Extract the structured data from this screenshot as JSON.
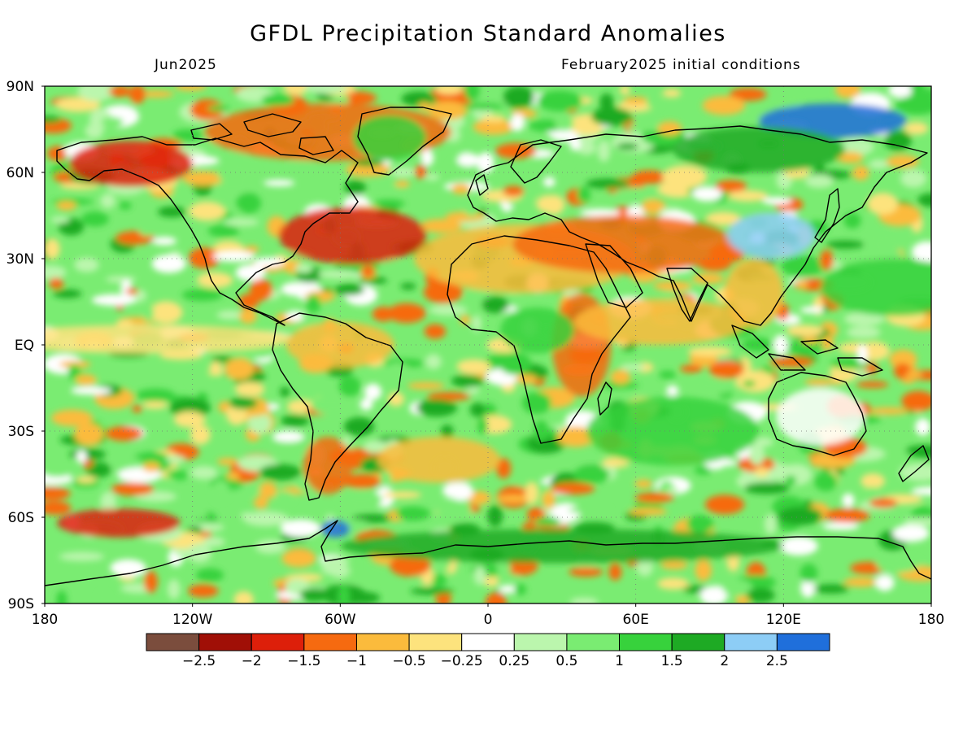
{
  "header": {
    "title": "GFDL Precipitation Standard Anomalies",
    "valid_month": "Jun2025",
    "initial_conditions": "February2025 initial conditions"
  },
  "map": {
    "projection": "equirectangular",
    "lon_range": [
      -180,
      180
    ],
    "lat_range": [
      -90,
      90
    ],
    "lat_ticks": [
      {
        "value": 90,
        "label": "90N"
      },
      {
        "value": 60,
        "label": "60N"
      },
      {
        "value": 30,
        "label": "30N"
      },
      {
        "value": 0,
        "label": "EQ"
      },
      {
        "value": -30,
        "label": "30S"
      },
      {
        "value": -60,
        "label": "60S"
      },
      {
        "value": -90,
        "label": "90S"
      }
    ],
    "lon_ticks": [
      {
        "value": -180,
        "label": "180"
      },
      {
        "value": -120,
        "label": "120W"
      },
      {
        "value": -60,
        "label": "60W"
      },
      {
        "value": 0,
        "label": "0"
      },
      {
        "value": 60,
        "label": "60E"
      },
      {
        "value": 120,
        "label": "120E"
      },
      {
        "value": 180,
        "label": "180"
      }
    ],
    "grid": "dotted at 30° intervals"
  },
  "colorbar": {
    "colors": [
      "#7b4d3d",
      "#a00f06",
      "#dd1f0a",
      "#f66a10",
      "#fbbb3c",
      "#fde37d",
      "#ffffff",
      "#bbf6ad",
      "#7aec72",
      "#37d23c",
      "#1eaa24",
      "#8dcdf6",
      "#1f6fdb"
    ],
    "labels": [
      "−2.5",
      "−2",
      "−1.5",
      "−1",
      "−0.5",
      "−0.25",
      "0.25",
      "0.5",
      "1",
      "1.5",
      "2",
      "2.5"
    ]
  },
  "chart_data": {
    "type": "heatmap",
    "title": "GFDL Precipitation Standard Anomalies",
    "subtitle_left": "Jun2025",
    "subtitle_right": "February2025 initial conditions",
    "xlim": [
      -180,
      180
    ],
    "ylim": [
      -90,
      90
    ],
    "contour_levels": [
      -2.5,
      -2,
      -1.5,
      -1,
      -0.5,
      -0.25,
      0.25,
      0.5,
      1,
      1.5,
      2,
      2.5
    ],
    "anomaly_regions": [
      {
        "region": "Canadian Arctic archipelago",
        "value": -1.5
      },
      {
        "region": "Alaska / Gulf of Alaska",
        "value": -2
      },
      {
        "region": "Western North Atlantic off US east coast",
        "value": -2
      },
      {
        "region": "North Africa / Mediterranean",
        "value": -1
      },
      {
        "region": "Middle East / Central Asia",
        "value": -1.5
      },
      {
        "region": "East Africa / Horn",
        "value": -1.5
      },
      {
        "region": "Northern Indian Ocean",
        "value": -1
      },
      {
        "region": "Southeast Asia / Philippines",
        "value": -1
      },
      {
        "region": "Tropical eastern Pacific (equatorial band)",
        "value": -0.5
      },
      {
        "region": "Northern South America / Amazon",
        "value": -1
      },
      {
        "region": "Southern South America / Argentina",
        "value": -1.5
      },
      {
        "region": "South Atlantic",
        "value": -1
      },
      {
        "region": "Southern Ocean south of Pacific",
        "value": -2
      },
      {
        "region": "Arctic Ocean / northern Siberia",
        "value": 2.5
      },
      {
        "region": "Northern Russia",
        "value": 1.5
      },
      {
        "region": "China / Mongolia",
        "value": 2
      },
      {
        "region": "Western Pacific north of equator",
        "value": 1
      },
      {
        "region": "Central Africa",
        "value": 1
      },
      {
        "region": "Southern Indian Ocean",
        "value": 1
      },
      {
        "region": "Southern Ocean / Antarctic coast",
        "value": 1.5
      },
      {
        "region": "Australia interior",
        "value": 0
      },
      {
        "region": "Greenland",
        "value": 1
      },
      {
        "region": "Antarctic Peninsula",
        "value": 2.5
      }
    ]
  }
}
